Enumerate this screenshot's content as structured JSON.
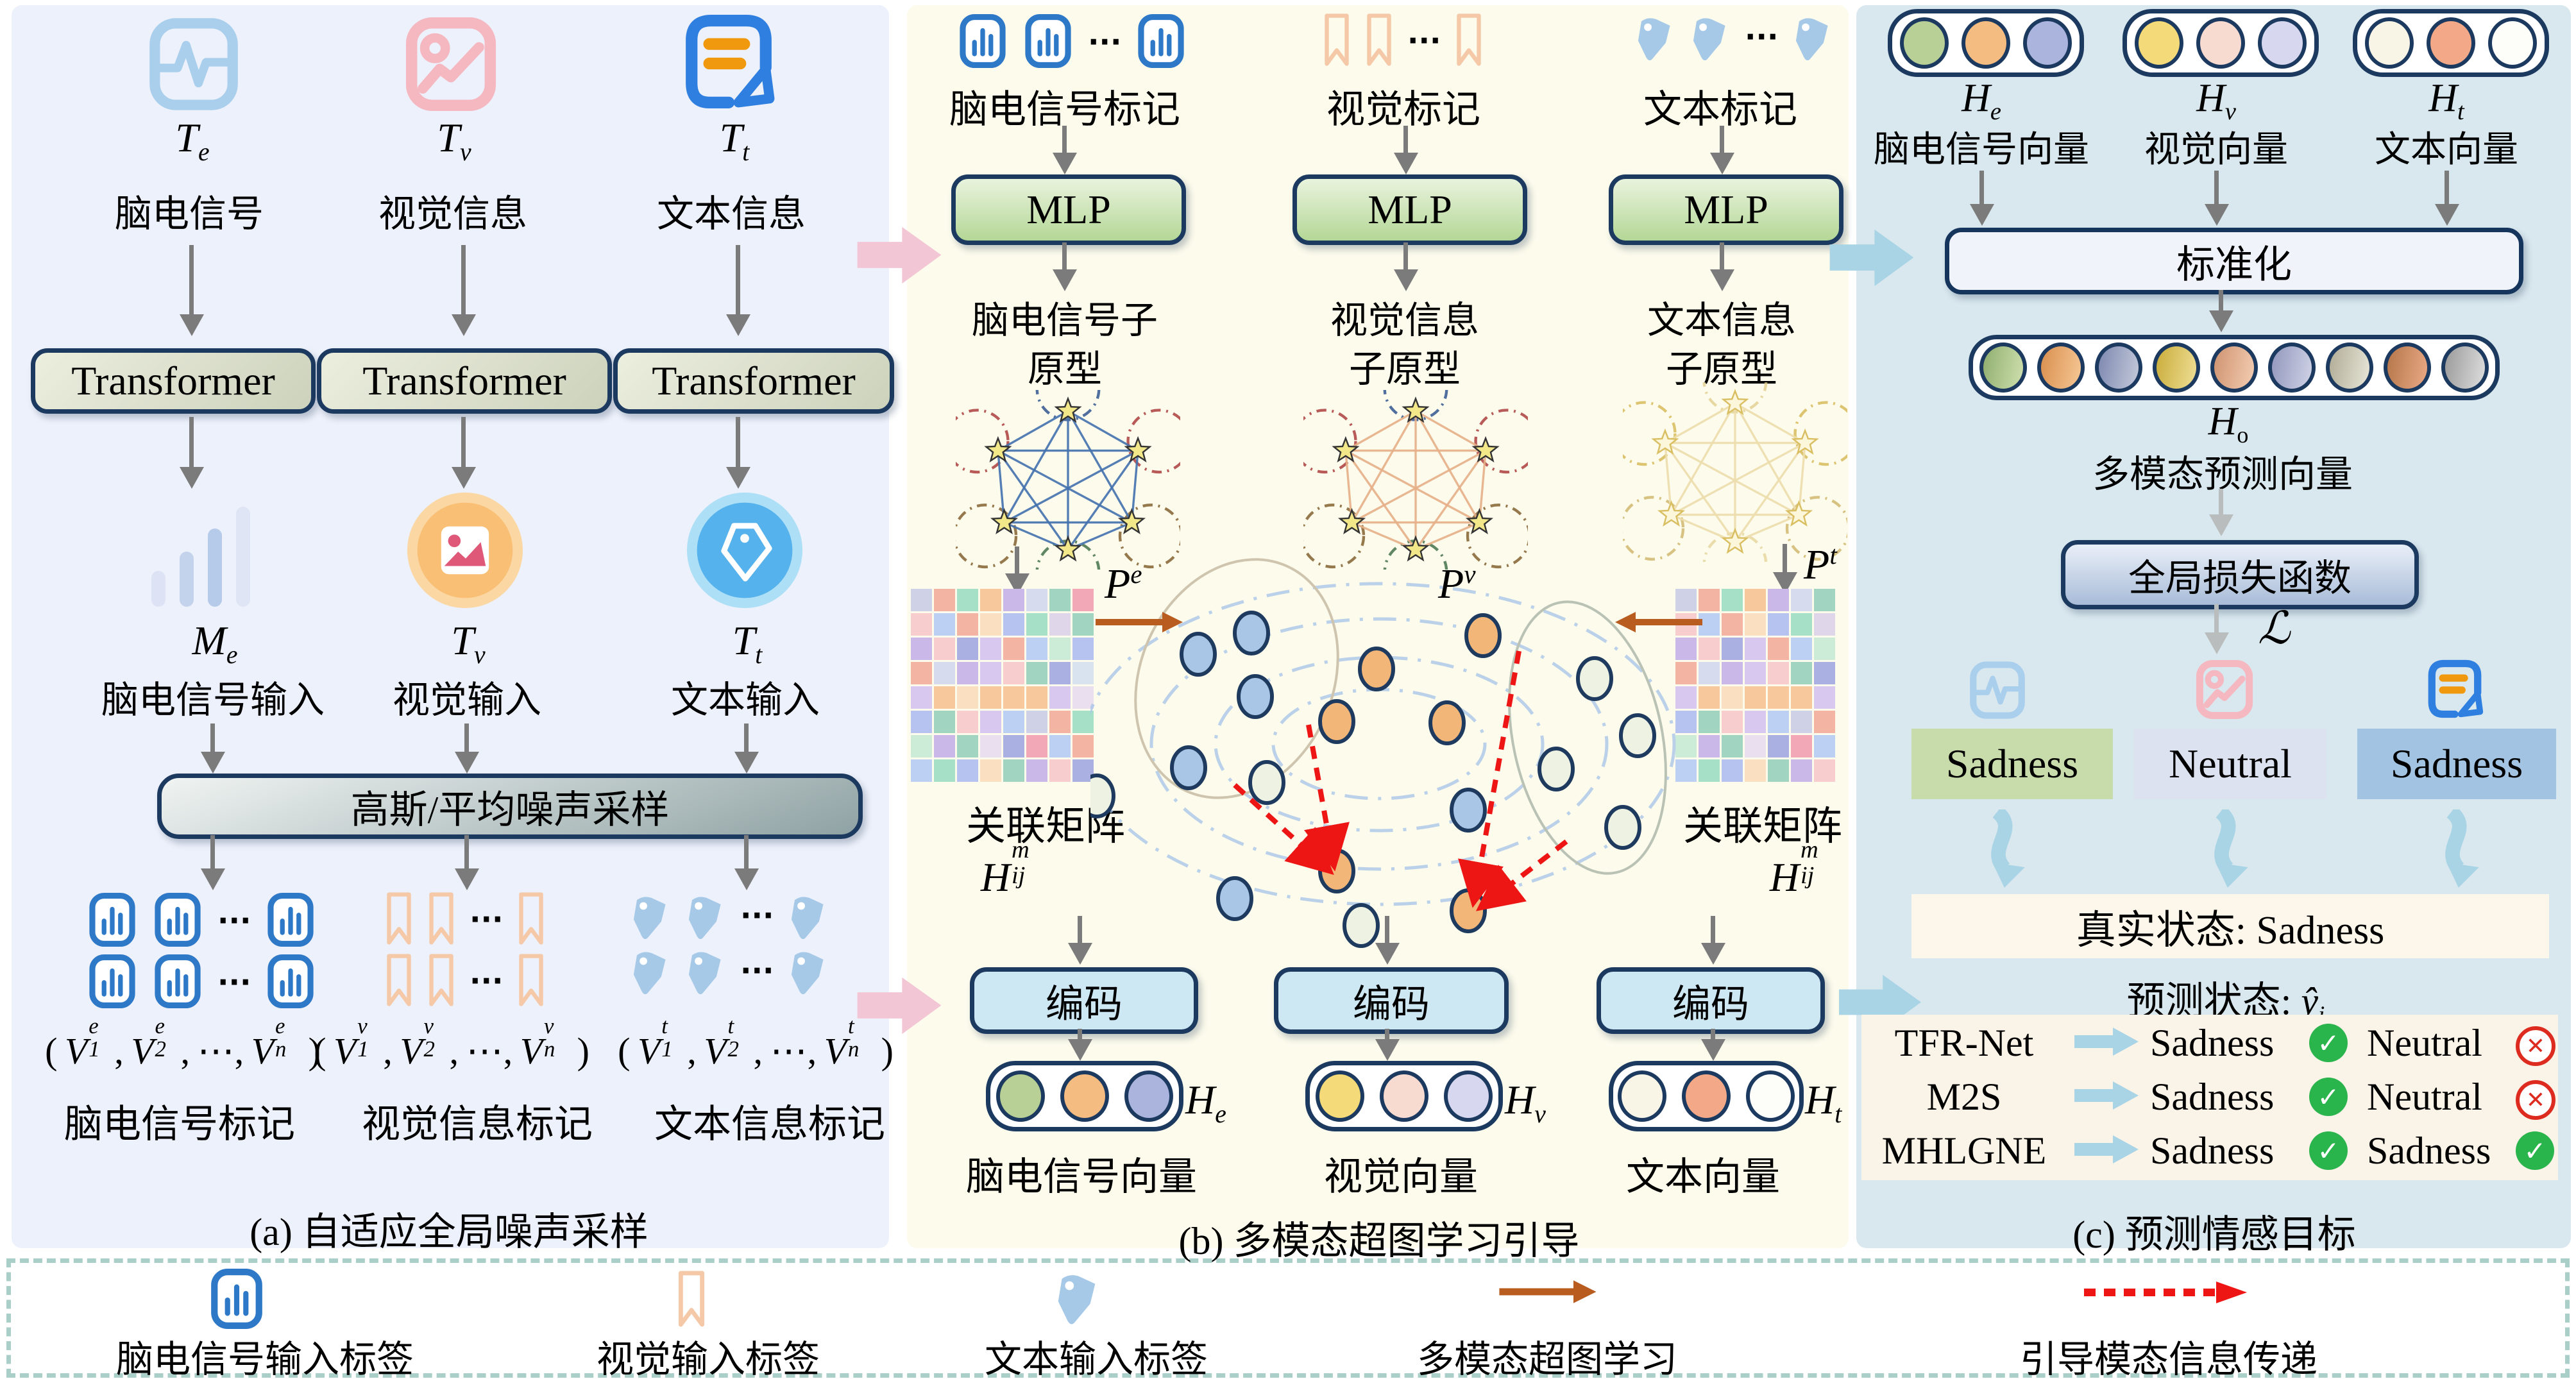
{
  "icons": {
    "dots": "···",
    "check": "✓",
    "cross": "✕"
  },
  "panel_a": {
    "caption": "(a) 自适应全局噪声采样",
    "sources": [
      {
        "sym": "T",
        "sub": "e",
        "name": "脑电信号"
      },
      {
        "sym": "T",
        "sub": "v",
        "name": "视觉信息"
      },
      {
        "sym": "T",
        "sub": "t",
        "name": "文本信息"
      }
    ],
    "transformer": "Transformer",
    "inputs": [
      {
        "sym": "M",
        "sub": "e",
        "name": "脑电信号输入"
      },
      {
        "sym": "T",
        "sub": "v",
        "name": "视觉输入"
      },
      {
        "sym": "T",
        "sub": "t",
        "name": "文本输入"
      }
    ],
    "noise_box": "高斯/平均噪声采样",
    "groups": [
      {
        "v": "V",
        "sup": "e",
        "subs": [
          "1",
          "2",
          "n"
        ],
        "label": "脑电信号标记"
      },
      {
        "v": "V",
        "sup": "v",
        "subs": [
          "1",
          "2",
          "n"
        ],
        "label": "视觉信息标记"
      },
      {
        "v": "V",
        "sup": "t",
        "subs": [
          "1",
          "2",
          "n"
        ],
        "label": "文本信息标记"
      }
    ]
  },
  "panel_b": {
    "caption": "(b) 多模态超图学习引导",
    "cols": [
      {
        "tokens": "脑电信号标记",
        "mlp": "MLP",
        "proto1": "脑电信号子",
        "proto2": "原型",
        "p": "P",
        "psup": "e",
        "enc": "编码",
        "h": "H",
        "hsub": "e",
        "vec": "脑电信号向量"
      },
      {
        "tokens": "视觉标记",
        "mlp": "MLP",
        "proto1": "视觉信息",
        "proto2": "子原型",
        "p": "P",
        "psup": "v",
        "enc": "编码",
        "h": "H",
        "hsub": "v",
        "vec": "视觉向量"
      },
      {
        "tokens": "文本标记",
        "mlp": "MLP",
        "proto1": "文本信息",
        "proto2": "子原型",
        "p": "P",
        "psup": "t",
        "enc": "编码",
        "h": "H",
        "hsub": "t",
        "vec": "文本向量"
      }
    ],
    "matrix_label": "关联矩阵",
    "mat_h": "H",
    "mat_sup": "m",
    "mat_sub": "ij"
  },
  "panel_c": {
    "caption": "(c) 预测情感目标",
    "vectors": [
      {
        "h": "H",
        "sub": "e",
        "name": "脑电信号向量"
      },
      {
        "h": "H",
        "sub": "v",
        "name": "视觉向量"
      },
      {
        "h": "H",
        "sub": "t",
        "name": "文本向量"
      }
    ],
    "standardize": "标准化",
    "ho": {
      "h": "H",
      "sub": "o",
      "name": "多模态预测向量"
    },
    "loss": "全局损失函数",
    "loss_sym": "ℒ",
    "emotions": [
      "Sadness",
      "Neutral",
      "Sadness"
    ],
    "truth": "真实状态: Sadness",
    "pred": "预测状态:",
    "pred_var": "ŷ",
    "pred_sub": "i",
    "results": [
      {
        "model": "TFR-Net",
        "p1": "Sadness",
        "ok1": true,
        "p2": "Neutral",
        "ok2": false
      },
      {
        "model": "M2S",
        "p1": "Sadness",
        "ok1": true,
        "p2": "Neutral",
        "ok2": false
      },
      {
        "model": "MHLGNE",
        "p1": "Sadness",
        "ok1": true,
        "p2": "Sadness",
        "ok2": true
      }
    ]
  },
  "legend": {
    "items": [
      {
        "label": "脑电信号输入标签"
      },
      {
        "label": "视觉输入标签"
      },
      {
        "label": "文本输入标签"
      },
      {
        "label": "多模态超图学习"
      },
      {
        "label": "引导模态信息传递"
      }
    ]
  },
  "colors": {
    "panel_a_bg": "#edf1fb",
    "panel_b_bg": "#fcfbec",
    "panel_c_bg": "#d9e8ef",
    "navy": "#1c3a60",
    "token_blue": "#2e78c8",
    "bookmark": "#f5c9a8",
    "tag": "#a6c9e8",
    "eeg_icon": "#aacfec",
    "image_icon": "#f5b8c0",
    "doc_icon": "#2f7fe0",
    "doc_bar": "#f0990f",
    "he": [
      "#b8d096",
      "#f4bc80",
      "#aab4dc"
    ],
    "hv": [
      "#f4da78",
      "#f8dbd0",
      "#d7d7ef"
    ],
    "ht": [
      "#f8f4e6",
      "#f3a987",
      "#fdfdfa"
    ],
    "ho": [
      [
        "#8fae6e",
        "#cfe0ae"
      ],
      [
        "#d98f4e",
        "#f6c795"
      ],
      [
        "#7d88b0",
        "#c4cada"
      ],
      [
        "#c9ac3a",
        "#efdf96"
      ],
      [
        "#cf9370",
        "#f3cdb2"
      ],
      [
        "#9297bd",
        "#d0d3e6"
      ],
      [
        "#b0ac96",
        "#e8e6d8"
      ],
      [
        "#b5764a",
        "#eaa985"
      ],
      [
        "#9a9a9a",
        "#dedede"
      ]
    ],
    "emotion_bg": [
      "#c8dcab",
      "#dde2f1",
      "#a2c3e1"
    ],
    "proto_e": "#4472ae",
    "proto_v": "#e6b088",
    "proto_t": "#ead9a2",
    "node_blue": "#a9c6e6",
    "node_orange": "#f2b679",
    "node_pale": "#eef2e2",
    "pink_arrow": "#f3c6d5",
    "blue_arrow": "#a9d4e5",
    "brown_arrow": "#b85c20",
    "red_arrow": "#ee1515",
    "matrix_palette": [
      "#aab0e2",
      "#f4b4a4",
      "#a6e0c6",
      "#f7c89c",
      "#c9b8e8",
      "#b6c2f0",
      "#a2d4c2",
      "#f2a8b6",
      "#d8c8f0",
      "#bcd0f4"
    ]
  }
}
